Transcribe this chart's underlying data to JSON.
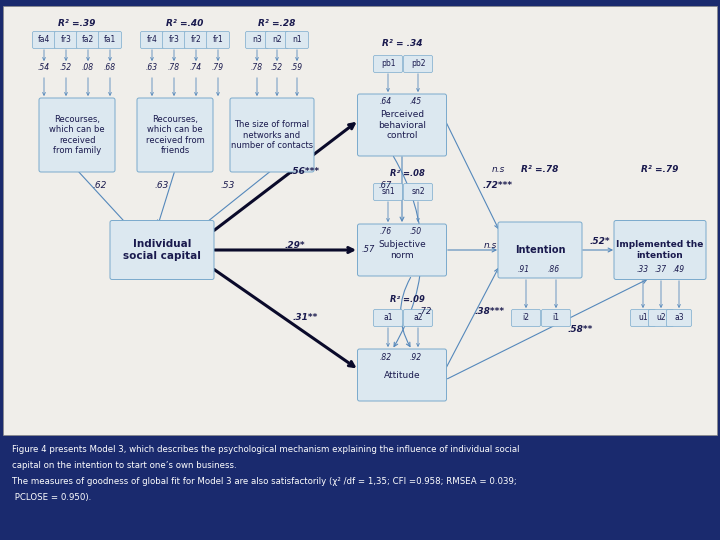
{
  "bg_color": "#1a2a6e",
  "diagram_bg": "#f0eeea",
  "box_fc": "#dce8f0",
  "box_ec": "#7aaacc",
  "text_color": "#1a1a4e",
  "arrow_thin": "#5588bb",
  "arrow_thick": "#0a0a2a",
  "caption_color": "#ffffff",
  "caption_lines": [
    "Figure 4 presents Model 3, which describes the psychological mechanism explaining the influence of individual social",
    "capital on the intention to start one’s own business.",
    "The measures of goodness of global fit for Model 3 are also satisfactorily (χ² /df = 1,35; CFI =0.958; RMSEA = 0.039;",
    " PCLOSE = 0.950)."
  ],
  "fam_indicators": [
    "fa4",
    "fr3",
    "fa2",
    "fa1"
  ],
  "fri_indicators": [
    "fr4",
    "fr3",
    "fr2",
    "fr1"
  ],
  "net_indicators": [
    "n3",
    "n2",
    "n1"
  ],
  "fam_loadings": [
    ".54",
    ".52",
    ".08",
    ".68"
  ],
  "fri_loadings": [
    ".63",
    ".78",
    ".74",
    ".79"
  ],
  "net_loadings": [
    ".78",
    ".52",
    ".59"
  ],
  "r2_fam": "R² =.39",
  "r2_fri": "R² =.40",
  "r2_net": "R² =.28",
  "r2_pbc": "R² = .34",
  "r2_sn": "R² =.08",
  "r2_att": "R² =.09",
  "r2_int": "R² =.78",
  "r2_imp": "R² =.79",
  "pbc_indicators": [
    "pb1",
    "pb2"
  ],
  "pbc_loadings": [
    ".64",
    ".45"
  ],
  "sn_indicators": [
    "sn1",
    "sn2"
  ],
  "sn_loadings": [
    ".76",
    ".50"
  ],
  "att_indicators": [
    "a1",
    "a2"
  ],
  "att_loadings": [
    ".82",
    ".92"
  ],
  "int_indicators": [
    "i2",
    "i1"
  ],
  "int_loadings": [
    ".91",
    ".86"
  ],
  "imp_indicators": [
    "u1",
    "u2",
    "a3"
  ],
  "imp_loadings": [
    ".33",
    ".37",
    ".49"
  ],
  "lbl_isc_pbc": ".56***",
  "lbl_isc_sn": ".29*",
  "lbl_isc_att": ".31**",
  "lbl_pbc_sn": ".67",
  "lbl_pbc_att": ".57",
  "lbl_sn_att": ".72",
  "lbl_pbc_int": "n.s",
  "lbl_sn_int": "n.s",
  "lbl_att_int": ".38***",
  "lbl_pbc_int2": ".72***",
  "lbl_int_imp": ".52*",
  "lbl_att_imp": ".58**",
  "lbl_fam_isc": ".62",
  "lbl_fri_isc": ".63",
  "lbl_net_isc": ".53"
}
